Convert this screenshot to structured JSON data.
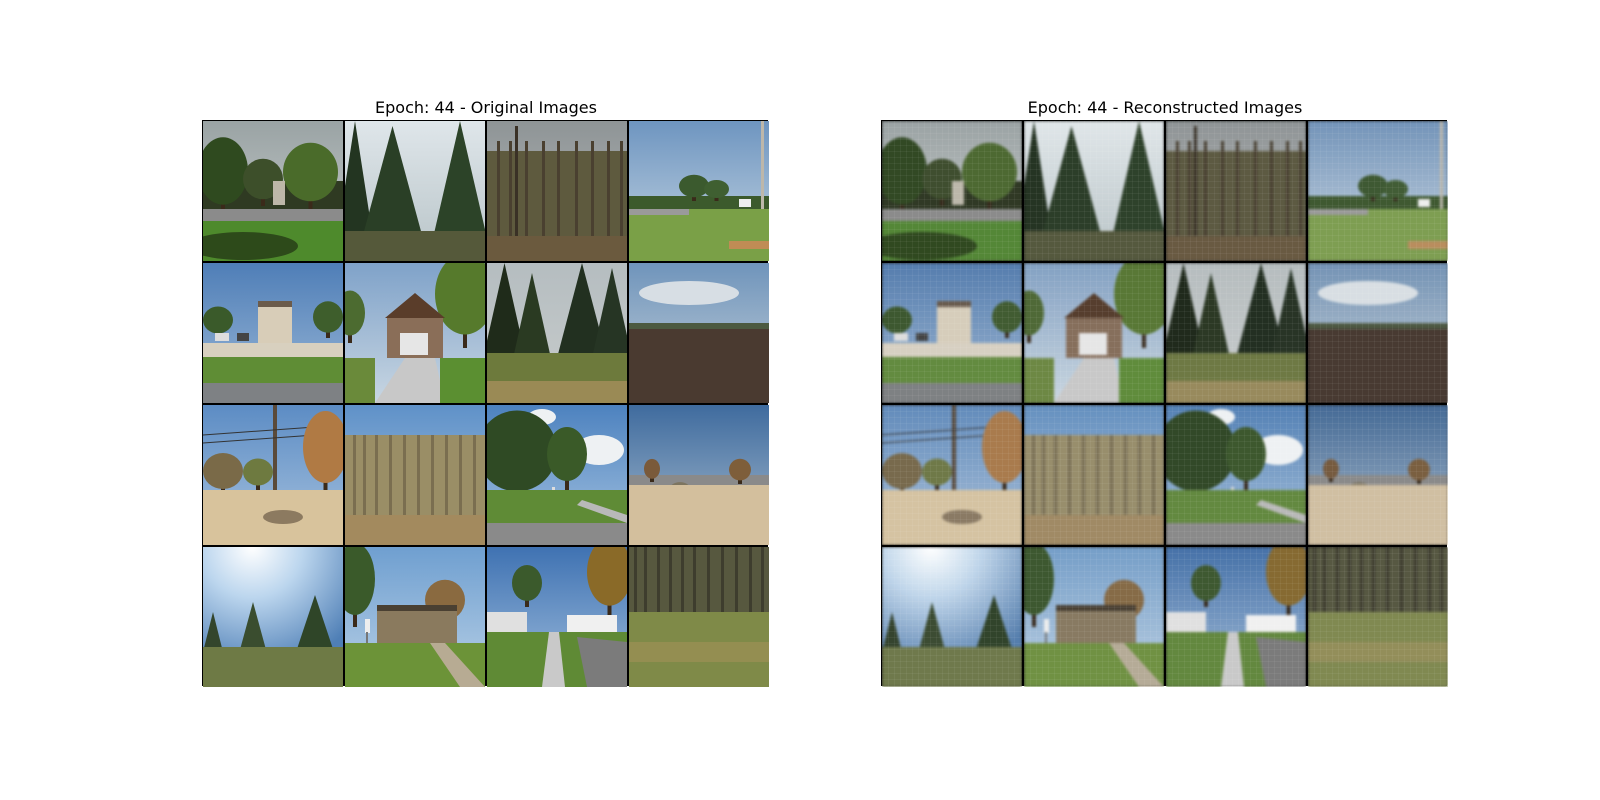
{
  "figure": {
    "left_title": "Epoch: 44 - Original Images",
    "right_title": "Epoch: 44 - Reconstructed Images"
  }
}
